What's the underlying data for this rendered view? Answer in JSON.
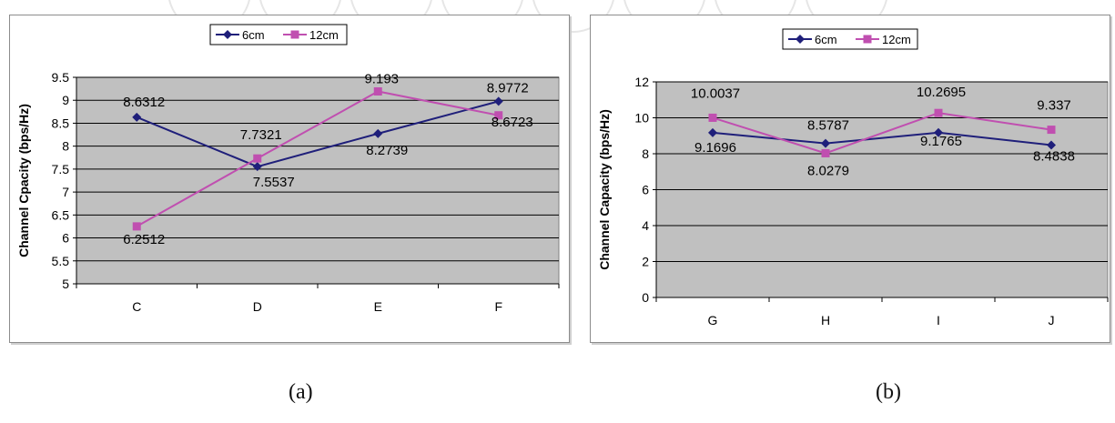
{
  "chart_data": [
    {
      "type": "line",
      "categories": [
        "C",
        "D",
        "E",
        "F"
      ],
      "ylabel": "Channel Cpacity (bps/Hz)",
      "ylim": [
        5,
        9.5
      ],
      "yticks": [
        5,
        5.5,
        6,
        6.5,
        7,
        7.5,
        8,
        8.5,
        9,
        9.5
      ],
      "grid": true,
      "legend": "top-center",
      "series": [
        {
          "name": "6cm",
          "color": "#1f1f7a",
          "marker": "diamond",
          "values": [
            8.6312,
            7.5537,
            8.2739,
            8.9772
          ],
          "labels": [
            "8.6312",
            "7.5537",
            "8.2739",
            "8.9772"
          ]
        },
        {
          "name": "12cm",
          "color": "#c04fb0",
          "marker": "square",
          "values": [
            6.2512,
            7.7321,
            9.193,
            8.6723
          ],
          "labels": [
            "6.2512",
            "7.7321",
            "9.193",
            "8.6723"
          ]
        }
      ],
      "caption": "(a)"
    },
    {
      "type": "line",
      "categories": [
        "G",
        "H",
        "I",
        "J"
      ],
      "ylabel": "Channel Capacity (bps/Hz)",
      "ylim": [
        0,
        12
      ],
      "yticks": [
        0,
        2,
        4,
        6,
        8,
        10,
        12
      ],
      "grid": true,
      "legend": "top-center",
      "series": [
        {
          "name": "6cm",
          "color": "#1f1f7a",
          "marker": "diamond",
          "values": [
            9.1696,
            8.5787,
            9.1765,
            8.4838
          ],
          "labels": [
            "9.1696",
            "8.5787",
            "9.1765",
            "8.4838"
          ]
        },
        {
          "name": "12cm",
          "color": "#c04fb0",
          "marker": "square",
          "values": [
            10.0037,
            8.0279,
            10.2695,
            9.337
          ],
          "labels": [
            "10.0037",
            "8.0279",
            "10.2695",
            "9.337"
          ]
        }
      ],
      "caption": "(b)"
    }
  ]
}
